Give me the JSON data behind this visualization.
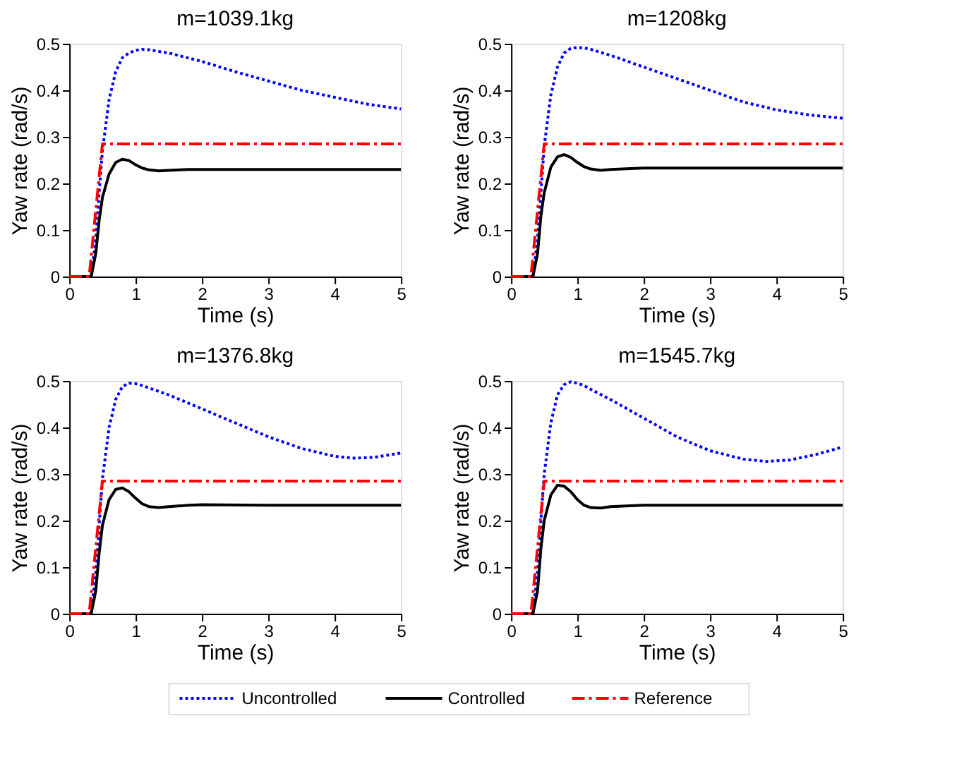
{
  "chart_data": [
    {
      "type": "line",
      "title": "m=1039.1kg",
      "xlabel": "Time (s)",
      "ylabel": "Yaw rate (rad/s)",
      "xlim": [
        0,
        5
      ],
      "xticks": [
        0,
        1,
        2,
        3,
        4,
        5
      ],
      "ylim": [
        0,
        0.5
      ],
      "yticks": [
        0,
        0.1,
        0.2,
        0.3,
        0.4,
        0.5
      ],
      "legend": "bottom",
      "series": [
        {
          "name": "Uncontrolled",
          "color": "#0000ff",
          "line_style": "dotted",
          "x": [
            0,
            0.33,
            0.4,
            0.45,
            0.5,
            0.6,
            0.7,
            0.8,
            0.9,
            1.0,
            1.1,
            1.2,
            1.5,
            2,
            2.5,
            3,
            3.5,
            4,
            4.5,
            5
          ],
          "values": [
            0,
            0,
            0.08,
            0.18,
            0.27,
            0.38,
            0.44,
            0.47,
            0.48,
            0.486,
            0.488,
            0.487,
            0.48,
            0.462,
            0.44,
            0.42,
            0.4,
            0.385,
            0.37,
            0.36
          ]
        },
        {
          "name": "Controlled",
          "color": "#000000",
          "line_style": "solid",
          "x": [
            0,
            0.33,
            0.4,
            0.45,
            0.5,
            0.6,
            0.7,
            0.8,
            0.9,
            1.0,
            1.1,
            1.2,
            1.35,
            1.5,
            1.8,
            2,
            3,
            4,
            5
          ],
          "values": [
            0,
            0,
            0.05,
            0.12,
            0.17,
            0.22,
            0.245,
            0.252,
            0.249,
            0.24,
            0.233,
            0.229,
            0.227,
            0.228,
            0.23,
            0.23,
            0.23,
            0.23,
            0.23
          ]
        },
        {
          "name": "Reference",
          "color": "#ff0000",
          "line_style": "dashed",
          "x": [
            0,
            0.3,
            0.5,
            5
          ],
          "values": [
            0,
            0,
            0.285,
            0.285
          ]
        }
      ]
    },
    {
      "type": "line",
      "title": "m=1208kg",
      "xlabel": "Time (s)",
      "ylabel": "Yaw rate (rad/s)",
      "xlim": [
        0,
        5
      ],
      "xticks": [
        0,
        1,
        2,
        3,
        4,
        5
      ],
      "ylim": [
        0,
        0.5
      ],
      "yticks": [
        0,
        0.1,
        0.2,
        0.3,
        0.4,
        0.5
      ],
      "series": [
        {
          "color": "#0000ff",
          "line_style": "dotted",
          "x": [
            0,
            0.33,
            0.4,
            0.45,
            0.5,
            0.6,
            0.7,
            0.8,
            0.9,
            1.0,
            1.1,
            1.2,
            1.5,
            2,
            2.5,
            3,
            3.5,
            4,
            4.5,
            5
          ],
          "values": [
            0,
            0,
            0.08,
            0.18,
            0.28,
            0.39,
            0.45,
            0.48,
            0.49,
            0.492,
            0.491,
            0.488,
            0.475,
            0.45,
            0.425,
            0.4,
            0.375,
            0.358,
            0.347,
            0.34
          ]
        },
        {
          "color": "#000000",
          "line_style": "solid",
          "x": [
            0,
            0.33,
            0.4,
            0.45,
            0.5,
            0.6,
            0.7,
            0.8,
            0.9,
            1.0,
            1.1,
            1.2,
            1.35,
            1.5,
            1.8,
            2,
            3,
            4,
            5
          ],
          "values": [
            0,
            0,
            0.05,
            0.13,
            0.18,
            0.235,
            0.257,
            0.262,
            0.256,
            0.245,
            0.236,
            0.231,
            0.228,
            0.23,
            0.232,
            0.233,
            0.233,
            0.233,
            0.233
          ]
        },
        {
          "color": "#ff0000",
          "line_style": "dashed",
          "x": [
            0,
            0.3,
            0.5,
            5
          ],
          "values": [
            0,
            0,
            0.285,
            0.285
          ]
        }
      ]
    },
    {
      "type": "line",
      "title": "m=1376.8kg",
      "xlabel": "Time (s)",
      "ylabel": "Yaw rate (rad/s)",
      "xlim": [
        0,
        5
      ],
      "xticks": [
        0,
        1,
        2,
        3,
        4,
        5
      ],
      "ylim": [
        0,
        0.5
      ],
      "yticks": [
        0,
        0.1,
        0.2,
        0.3,
        0.4,
        0.5
      ],
      "series": [
        {
          "color": "#0000ff",
          "line_style": "dotted",
          "x": [
            0,
            0.33,
            0.4,
            0.45,
            0.5,
            0.6,
            0.7,
            0.8,
            0.9,
            1.0,
            1.1,
            1.2,
            1.5,
            2,
            2.5,
            3,
            3.5,
            4,
            4.3,
            4.6,
            5
          ],
          "values": [
            0,
            0,
            0.09,
            0.19,
            0.29,
            0.4,
            0.46,
            0.488,
            0.495,
            0.494,
            0.49,
            0.485,
            0.47,
            0.44,
            0.41,
            0.38,
            0.355,
            0.338,
            0.334,
            0.336,
            0.345
          ]
        },
        {
          "color": "#000000",
          "line_style": "solid",
          "x": [
            0,
            0.33,
            0.4,
            0.45,
            0.5,
            0.6,
            0.7,
            0.8,
            0.9,
            1.0,
            1.1,
            1.2,
            1.35,
            1.5,
            1.8,
            2,
            3,
            4,
            5
          ],
          "values": [
            0,
            0,
            0.05,
            0.13,
            0.19,
            0.245,
            0.267,
            0.27,
            0.262,
            0.248,
            0.236,
            0.23,
            0.228,
            0.23,
            0.233,
            0.234,
            0.233,
            0.233,
            0.233
          ]
        },
        {
          "color": "#ff0000",
          "line_style": "dashed",
          "x": [
            0,
            0.3,
            0.5,
            5
          ],
          "values": [
            0,
            0,
            0.285,
            0.285
          ]
        }
      ]
    },
    {
      "type": "line",
      "title": "m=1545.7kg",
      "xlabel": "Time (s)",
      "ylabel": "Yaw rate (rad/s)",
      "xlim": [
        0,
        5
      ],
      "xticks": [
        0,
        1,
        2,
        3,
        4,
        5
      ],
      "ylim": [
        0,
        0.5
      ],
      "yticks": [
        0,
        0.1,
        0.2,
        0.3,
        0.4,
        0.5
      ],
      "series": [
        {
          "color": "#0000ff",
          "line_style": "dotted",
          "x": [
            0,
            0.33,
            0.4,
            0.45,
            0.5,
            0.6,
            0.7,
            0.8,
            0.9,
            1.0,
            1.1,
            1.2,
            1.5,
            2,
            2.5,
            3,
            3.5,
            3.85,
            4.2,
            4.6,
            5
          ],
          "values": [
            0,
            0,
            0.09,
            0.2,
            0.3,
            0.41,
            0.47,
            0.492,
            0.498,
            0.495,
            0.49,
            0.482,
            0.46,
            0.42,
            0.38,
            0.35,
            0.332,
            0.327,
            0.33,
            0.342,
            0.358
          ]
        },
        {
          "color": "#000000",
          "line_style": "solid",
          "x": [
            0,
            0.33,
            0.4,
            0.45,
            0.5,
            0.6,
            0.7,
            0.8,
            0.9,
            1.0,
            1.1,
            1.2,
            1.35,
            1.5,
            1.8,
            2,
            3,
            4,
            5
          ],
          "values": [
            0,
            0,
            0.05,
            0.14,
            0.2,
            0.255,
            0.276,
            0.274,
            0.262,
            0.245,
            0.233,
            0.228,
            0.227,
            0.23,
            0.232,
            0.233,
            0.233,
            0.233,
            0.233
          ]
        },
        {
          "color": "#ff0000",
          "line_style": "dashed",
          "x": [
            0,
            0.3,
            0.5,
            5
          ],
          "values": [
            0,
            0,
            0.285,
            0.285
          ]
        }
      ]
    }
  ]
}
